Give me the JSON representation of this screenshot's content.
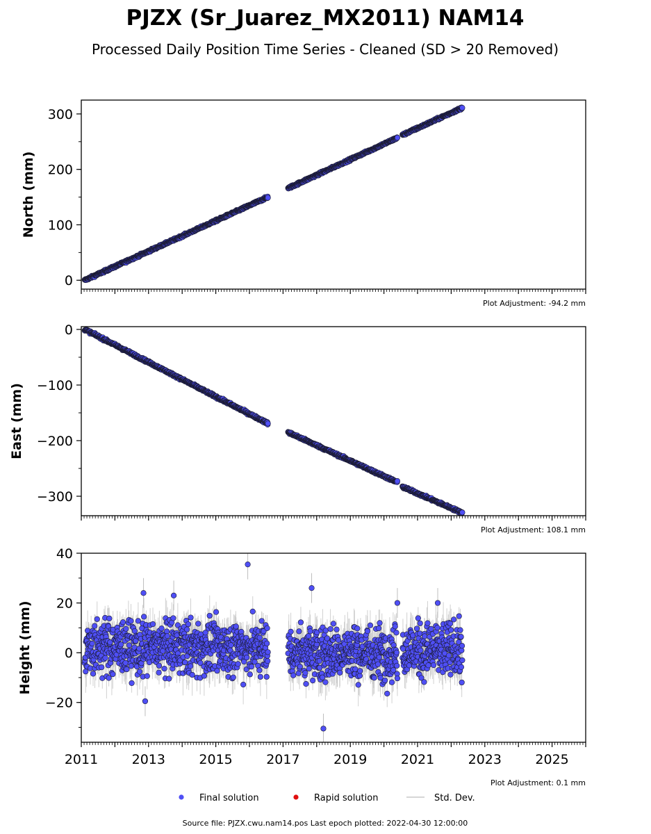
{
  "title": "PJZX (Sr_Juarez_MX2011) NAM14",
  "subtitle": "Processed Daily Position Time Series - Cleaned (SD > 20 Removed)",
  "footer": "Source file: PJZX.cwu.nam14.pos  Last epoch plotted: 2022-04-30 12:00:00",
  "legend": {
    "final": "Final solution",
    "rapid": "Rapid solution",
    "std": "Std. Dev."
  },
  "colors": {
    "final": "#4f4ff5",
    "final_edge": "#1a1a2e",
    "rapid": "#e01010",
    "std": "#bdbdbd"
  },
  "chart_data": [
    {
      "type": "scatter",
      "ylabel": "North (mm)",
      "adjustment": "Plot Adjustment: -94.2 mm",
      "xlim": [
        2011,
        2026
      ],
      "ylim": [
        -16,
        325
      ],
      "yticks": [
        {
          "v": 0,
          "label": "0"
        },
        {
          "v": 100,
          "label": "100"
        },
        {
          "v": 200,
          "label": "200"
        },
        {
          "v": 300,
          "label": "300"
        }
      ],
      "segments": [
        {
          "x0": 2011.1,
          "x1": 2016.55,
          "y0": 0,
          "y1": 150,
          "noise": 1.6
        },
        {
          "x0": 2017.15,
          "x1": 2020.4,
          "y0": 166,
          "y1": 257,
          "noise": 1.6
        },
        {
          "x0": 2020.55,
          "x1": 2022.33,
          "y0": 262,
          "y1": 311,
          "noise": 1.6
        }
      ],
      "outliers": []
    },
    {
      "type": "scatter",
      "ylabel": "East (mm)",
      "adjustment": "Plot Adjustment: 108.1 mm",
      "xlim": [
        2011,
        2026
      ],
      "ylim": [
        -335,
        5
      ],
      "yticks": [
        {
          "v": 0,
          "label": "0"
        },
        {
          "v": -100,
          "label": "−100"
        },
        {
          "v": -200,
          "label": "−200"
        },
        {
          "v": -300,
          "label": "−300"
        }
      ],
      "segments": [
        {
          "x0": 2011.1,
          "x1": 2016.55,
          "y0": 0,
          "y1": -169,
          "noise": 1.8
        },
        {
          "x0": 2017.15,
          "x1": 2020.4,
          "y0": -185,
          "y1": -275,
          "noise": 1.8
        },
        {
          "x0": 2020.55,
          "x1": 2022.33,
          "y0": -283,
          "y1": -330,
          "noise": 1.8
        }
      ],
      "outliers": []
    },
    {
      "type": "scatter",
      "ylabel": "Height (mm)",
      "adjustment": "Plot Adjustment: 0.1 mm",
      "xlim": [
        2011,
        2026
      ],
      "ylim": [
        -36,
        40
      ],
      "yticks": [
        {
          "v": -20,
          "label": "−20"
        },
        {
          "v": 0,
          "label": "0"
        },
        {
          "v": 20,
          "label": "20"
        },
        {
          "v": 40,
          "label": "40"
        }
      ],
      "segments": [
        {
          "x0": 2011.1,
          "x1": 2016.55,
          "y0": 2,
          "y1": 2,
          "noise": 5.5
        },
        {
          "x0": 2017.15,
          "x1": 2020.4,
          "y0": 0,
          "y1": 0,
          "noise": 5.5
        },
        {
          "x0": 2020.55,
          "x1": 2022.33,
          "y0": 1,
          "y1": 1,
          "noise": 5.5
        }
      ],
      "outliers": [
        {
          "x": 2015.95,
          "y": 35.5
        },
        {
          "x": 2017.85,
          "y": 26
        },
        {
          "x": 2018.2,
          "y": -30.5
        },
        {
          "x": 2012.85,
          "y": 24
        },
        {
          "x": 2013.75,
          "y": 23
        },
        {
          "x": 2012.9,
          "y": -19.5
        },
        {
          "x": 2020.4,
          "y": 20
        },
        {
          "x": 2021.6,
          "y": 20
        }
      ]
    }
  ],
  "xticks": [
    {
      "v": 2011,
      "label": "2011"
    },
    {
      "v": 2013,
      "label": "2013"
    },
    {
      "v": 2015,
      "label": "2015"
    },
    {
      "v": 2017,
      "label": "2017"
    },
    {
      "v": 2019,
      "label": "2019"
    },
    {
      "v": 2021,
      "label": "2021"
    },
    {
      "v": 2023,
      "label": "2023"
    },
    {
      "v": 2025,
      "label": "2025"
    }
  ]
}
